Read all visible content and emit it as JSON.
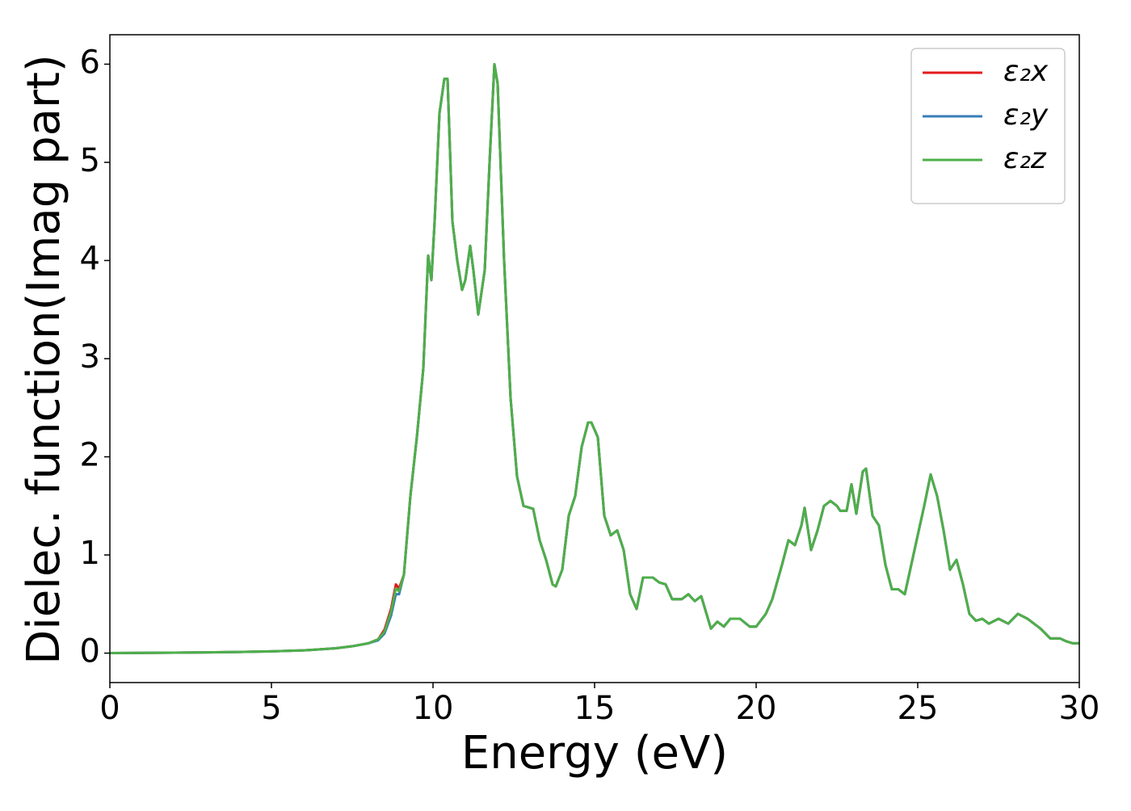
{
  "chart_data": {
    "type": "line",
    "x_label": "Energy (eV)",
    "y_label": "Dielec. function(Imag part)",
    "x": [
      0,
      1,
      2,
      3,
      4,
      5,
      6,
      6.5,
      7,
      7.5,
      8,
      8.3,
      8.5,
      8.7,
      8.85,
      8.95,
      9.1,
      9.3,
      9.5,
      9.7,
      9.85,
      9.95,
      10.05,
      10.2,
      10.35,
      10.45,
      10.6,
      10.75,
      10.9,
      11.0,
      11.15,
      11.25,
      11.4,
      11.6,
      11.75,
      11.9,
      12.0,
      12.2,
      12.4,
      12.6,
      12.8,
      13.0,
      13.1,
      13.3,
      13.5,
      13.7,
      13.8,
      14.0,
      14.2,
      14.4,
      14.6,
      14.8,
      14.9,
      15.1,
      15.3,
      15.5,
      15.7,
      15.9,
      16.1,
      16.3,
      16.5,
      16.8,
      17.0,
      17.2,
      17.4,
      17.7,
      17.9,
      18.1,
      18.3,
      18.6,
      18.8,
      19.0,
      19.2,
      19.5,
      19.8,
      20.0,
      20.3,
      20.5,
      20.8,
      21.0,
      21.2,
      21.4,
      21.5,
      21.7,
      21.9,
      22.1,
      22.3,
      22.5,
      22.6,
      22.8,
      22.95,
      23.1,
      23.3,
      23.4,
      23.6,
      23.8,
      24.0,
      24.2,
      24.4,
      24.6,
      24.8,
      25.0,
      25.2,
      25.4,
      25.6,
      25.8,
      26.0,
      26.2,
      26.4,
      26.6,
      26.8,
      27.0,
      27.2,
      27.5,
      27.8,
      28.1,
      28.4,
      28.8,
      29.1,
      29.4,
      29.6,
      29.8,
      30
    ],
    "series": [
      {
        "name": "ε₂x",
        "color": "#e41a1c",
        "values": [
          0,
          0.002,
          0.005,
          0.008,
          0.012,
          0.018,
          0.028,
          0.038,
          0.05,
          0.07,
          0.1,
          0.14,
          0.24,
          0.45,
          0.7,
          0.66,
          0.8,
          1.6,
          2.2,
          2.9,
          4.05,
          3.8,
          4.4,
          5.5,
          5.85,
          5.85,
          4.4,
          4.0,
          3.7,
          3.8,
          4.15,
          3.9,
          3.45,
          3.9,
          5.0,
          6.0,
          5.8,
          4.0,
          2.6,
          1.8,
          1.5,
          1.48,
          1.47,
          1.15,
          0.95,
          0.7,
          0.68,
          0.85,
          1.4,
          1.6,
          2.1,
          2.35,
          2.35,
          2.2,
          1.4,
          1.2,
          1.25,
          1.05,
          0.6,
          0.45,
          0.77,
          0.77,
          0.72,
          0.7,
          0.55,
          0.55,
          0.6,
          0.53,
          0.58,
          0.25,
          0.32,
          0.27,
          0.35,
          0.35,
          0.27,
          0.27,
          0.4,
          0.55,
          0.9,
          1.15,
          1.1,
          1.3,
          1.48,
          1.05,
          1.25,
          1.5,
          1.55,
          1.5,
          1.45,
          1.45,
          1.72,
          1.42,
          1.85,
          1.88,
          1.4,
          1.3,
          0.9,
          0.65,
          0.65,
          0.6,
          0.9,
          1.2,
          1.5,
          1.82,
          1.6,
          1.25,
          0.85,
          0.95,
          0.7,
          0.4,
          0.33,
          0.35,
          0.3,
          0.35,
          0.3,
          0.4,
          0.35,
          0.25,
          0.15,
          0.15,
          0.12,
          0.1,
          0.1
        ]
      },
      {
        "name": "ε₂y",
        "color": "#377eb8",
        "values": [
          0,
          0.002,
          0.005,
          0.008,
          0.012,
          0.018,
          0.028,
          0.038,
          0.05,
          0.07,
          0.1,
          0.13,
          0.2,
          0.38,
          0.6,
          0.6,
          0.8,
          1.6,
          2.2,
          2.9,
          4.05,
          3.8,
          4.4,
          5.5,
          5.85,
          5.85,
          4.4,
          4.0,
          3.7,
          3.8,
          4.15,
          3.9,
          3.45,
          3.9,
          5.0,
          6.0,
          5.8,
          4.0,
          2.6,
          1.8,
          1.5,
          1.48,
          1.47,
          1.15,
          0.95,
          0.7,
          0.68,
          0.85,
          1.4,
          1.6,
          2.1,
          2.35,
          2.35,
          2.2,
          1.4,
          1.2,
          1.25,
          1.05,
          0.6,
          0.45,
          0.77,
          0.77,
          0.72,
          0.7,
          0.55,
          0.55,
          0.6,
          0.53,
          0.58,
          0.25,
          0.32,
          0.27,
          0.35,
          0.35,
          0.27,
          0.27,
          0.4,
          0.55,
          0.9,
          1.15,
          1.1,
          1.3,
          1.48,
          1.05,
          1.25,
          1.5,
          1.55,
          1.5,
          1.45,
          1.45,
          1.72,
          1.42,
          1.85,
          1.88,
          1.4,
          1.3,
          0.9,
          0.65,
          0.65,
          0.6,
          0.9,
          1.2,
          1.5,
          1.82,
          1.6,
          1.25,
          0.85,
          0.95,
          0.7,
          0.4,
          0.33,
          0.35,
          0.3,
          0.35,
          0.3,
          0.4,
          0.35,
          0.25,
          0.15,
          0.15,
          0.12,
          0.1,
          0.1
        ]
      },
      {
        "name": "ε₂z",
        "color": "#4daf4a",
        "values": [
          0,
          0.002,
          0.005,
          0.008,
          0.012,
          0.018,
          0.028,
          0.038,
          0.05,
          0.07,
          0.1,
          0.14,
          0.22,
          0.42,
          0.66,
          0.63,
          0.8,
          1.6,
          2.2,
          2.9,
          4.05,
          3.8,
          4.4,
          5.5,
          5.85,
          5.85,
          4.4,
          4.0,
          3.7,
          3.8,
          4.15,
          3.9,
          3.45,
          3.9,
          5.0,
          6.0,
          5.8,
          4.0,
          2.6,
          1.8,
          1.5,
          1.48,
          1.47,
          1.15,
          0.95,
          0.7,
          0.68,
          0.85,
          1.4,
          1.6,
          2.1,
          2.35,
          2.35,
          2.2,
          1.4,
          1.2,
          1.25,
          1.05,
          0.6,
          0.45,
          0.77,
          0.77,
          0.72,
          0.7,
          0.55,
          0.55,
          0.6,
          0.53,
          0.58,
          0.25,
          0.32,
          0.27,
          0.35,
          0.35,
          0.27,
          0.27,
          0.4,
          0.55,
          0.9,
          1.15,
          1.1,
          1.3,
          1.48,
          1.05,
          1.25,
          1.5,
          1.55,
          1.5,
          1.45,
          1.45,
          1.72,
          1.42,
          1.85,
          1.88,
          1.4,
          1.3,
          0.9,
          0.65,
          0.65,
          0.6,
          0.9,
          1.2,
          1.5,
          1.82,
          1.6,
          1.25,
          0.85,
          0.95,
          0.7,
          0.4,
          0.33,
          0.35,
          0.3,
          0.35,
          0.3,
          0.4,
          0.35,
          0.25,
          0.15,
          0.15,
          0.12,
          0.1,
          0.1
        ]
      }
    ],
    "xlim": [
      0,
      30
    ],
    "xticks": [
      0,
      5,
      10,
      15,
      20,
      25,
      30
    ],
    "ylim": [
      -0.3,
      6.3
    ],
    "yticks": [
      0,
      1,
      2,
      3,
      4,
      5,
      6
    ],
    "grid": false,
    "legend": "upper right"
  }
}
